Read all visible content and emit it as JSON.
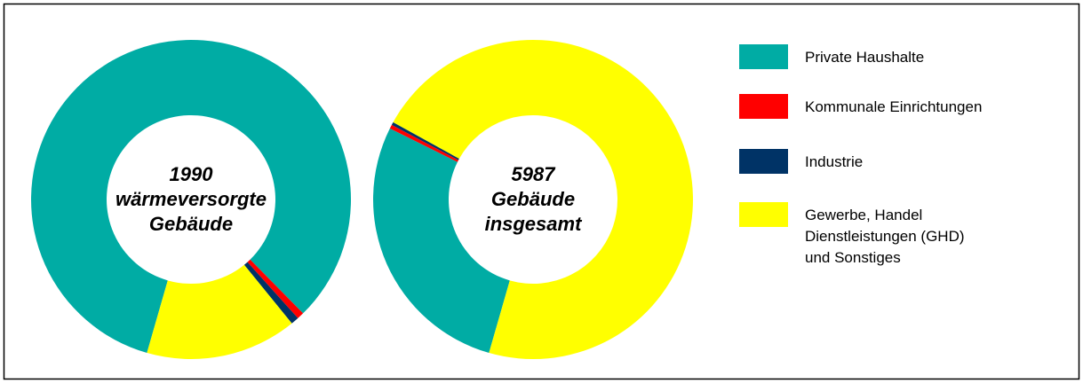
{
  "legend": {
    "categories": [
      [
        "Private Haushalte"
      ],
      [
        "Kommunale Einrichtungen"
      ],
      [
        "Industrie"
      ],
      [
        "Gewerbe, Handel",
        "Dienstleistungen (GHD)",
        "und Sonstiges"
      ]
    ],
    "colors": [
      "#00aca4",
      "#ff0000",
      "#003366",
      "#ffff00"
    ]
  },
  "chart_data": [
    {
      "type": "donut",
      "center_label": [
        "1990",
        "wärmeversorgte",
        "Gebäude"
      ],
      "values": [
        83.2,
        0.7,
        0.8,
        15.3
      ]
    },
    {
      "type": "donut",
      "center_label": [
        "5987",
        "Gebäude",
        "insgesamt"
      ],
      "values": [
        27.9,
        0.4,
        0.3,
        71.4
      ]
    }
  ]
}
